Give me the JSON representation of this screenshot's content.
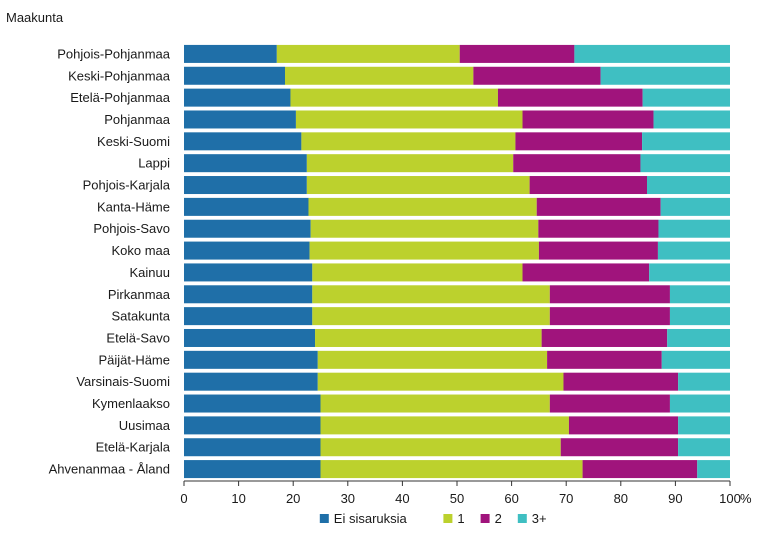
{
  "chart_data": {
    "type": "bar",
    "orientation": "horizontal",
    "stacked": true,
    "y_axis_title": "Maakunta",
    "x_unit": "%",
    "xlim": [
      0,
      100
    ],
    "x_ticks": [
      0,
      10,
      20,
      30,
      40,
      50,
      60,
      70,
      80,
      90,
      100
    ],
    "grid": false,
    "legend_position": "bottom",
    "categories": [
      "Pohjois-Pohjanmaa",
      "Keski-Pohjanmaa",
      "Etelä-Pohjanmaa",
      "Pohjanmaa",
      "Keski-Suomi",
      "Lappi",
      "Pohjois-Karjala",
      "Kanta-Häme",
      "Pohjois-Savo",
      "Koko maa",
      "Kainuu",
      "Pirkanmaa",
      "Satakunta",
      "Etelä-Savo",
      "Päijät-Häme",
      "Varsinais-Suomi",
      "Kymenlaakso",
      "Uusimaa",
      "Etelä-Karjala",
      "Ahvenanmaa - Åland"
    ],
    "series": [
      {
        "name": "Ei sisaruksia",
        "color": "#1f6fa8",
        "values": [
          17,
          18.5,
          19.5,
          20.5,
          21.5,
          22.5,
          22.5,
          22.8,
          23.2,
          23,
          23.5,
          23.5,
          23.5,
          24,
          24.5,
          24.5,
          25,
          25,
          25,
          25
        ]
      },
      {
        "name": "1",
        "color": "#bcd12d",
        "values": [
          33.5,
          34.5,
          38,
          41.5,
          39.2,
          37.8,
          40.8,
          41.8,
          41.7,
          42,
          38.5,
          43.5,
          43.5,
          41.5,
          42,
          45,
          42,
          45.5,
          44,
          48
        ]
      },
      {
        "name": "2",
        "color": "#a0147c",
        "values": [
          21,
          23.3,
          26.5,
          24,
          23.2,
          23.3,
          21.5,
          22.7,
          22,
          21.8,
          23.2,
          22,
          22,
          23,
          21,
          21,
          22,
          20,
          21.5,
          21
        ]
      },
      {
        "name": "3+",
        "color": "#3fbfc2",
        "values": [
          28.5,
          23.7,
          16,
          14,
          16.1,
          16.4,
          15.2,
          12.7,
          13.1,
          13.2,
          14.8,
          11,
          11,
          11.5,
          12.5,
          9.5,
          11,
          9.5,
          9.5,
          6
        ]
      }
    ]
  }
}
